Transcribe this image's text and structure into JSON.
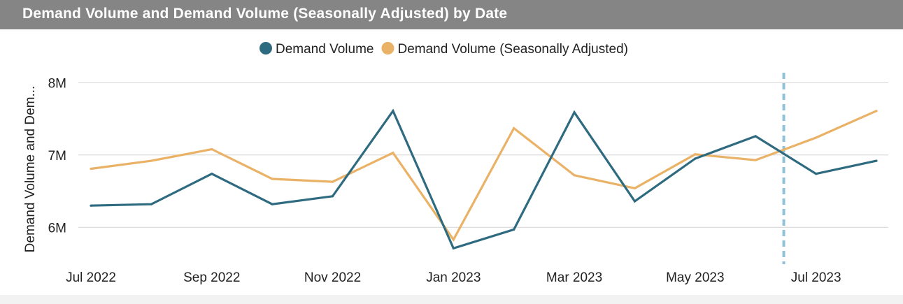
{
  "header": {
    "title": "Demand Volume and Demand Volume (Seasonally Adjusted) by Date"
  },
  "colors": {
    "series_1": "#2f6b80",
    "series_2": "#eab266",
    "reference_line": "#8fc3da",
    "grid": "#d4d4d4",
    "title_bar": "#858585"
  },
  "chart_data": {
    "type": "line",
    "title": "Demand Volume and Demand Volume (Seasonally Adjusted) by Date",
    "xlabel": "",
    "ylabel": "Demand Volume and Dem...",
    "x": [
      "2022-07",
      "2022-08",
      "2022-09",
      "2022-10",
      "2022-11",
      "2022-12",
      "2023-01",
      "2023-02",
      "2023-03",
      "2023-04",
      "2023-05",
      "2023-06",
      "2023-07",
      "2023-08"
    ],
    "x_tick_labels": [
      "Jul 2022",
      "Sep 2022",
      "Nov 2022",
      "Jan 2023",
      "Mar 2023",
      "May 2023",
      "Jul 2023"
    ],
    "x_tick_values": [
      "2022-07",
      "2022-09",
      "2022-11",
      "2023-01",
      "2023-03",
      "2023-05",
      "2023-07"
    ],
    "y_ticks": [
      6000000,
      7000000,
      8000000
    ],
    "y_tick_labels": [
      "6M",
      "7M",
      "8M"
    ],
    "ylim": [
      5500000,
      8100000
    ],
    "grid": true,
    "legend_position": "top-center",
    "series": [
      {
        "name": "Demand Volume",
        "values": [
          6300000,
          6320000,
          6740000,
          6320000,
          6430000,
          7610000,
          5710000,
          5970000,
          7590000,
          6360000,
          6950000,
          7260000,
          6740000,
          6920000
        ]
      },
      {
        "name": "Demand Volume (Seasonally Adjusted)",
        "values": [
          6810000,
          6920000,
          7080000,
          6670000,
          6630000,
          7030000,
          5830000,
          7370000,
          6720000,
          6540000,
          7010000,
          6930000,
          7240000,
          7610000
        ]
      }
    ],
    "reference_line": {
      "x": "2023-06-15",
      "style": "dashed"
    }
  }
}
